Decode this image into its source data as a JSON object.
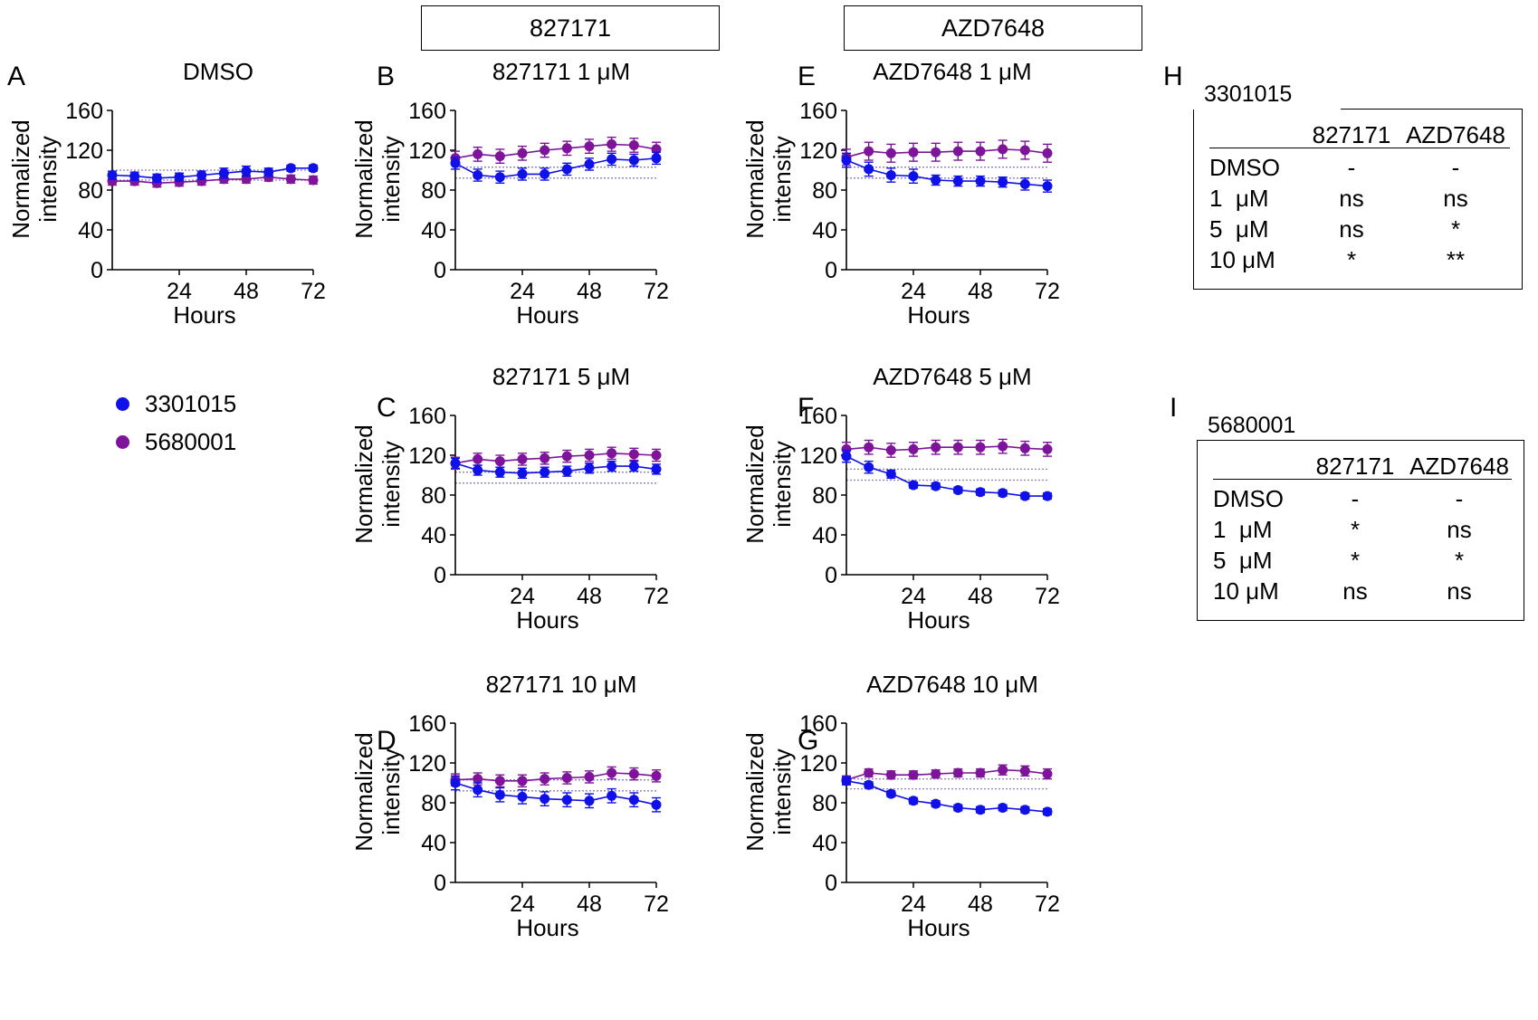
{
  "headers": {
    "compound_a": "827171",
    "compound_b": "AZD7648"
  },
  "legend": [
    {
      "label": "3301015",
      "color": "#1010e8"
    },
    {
      "label": "5680001",
      "color": "#7d1499"
    }
  ],
  "colors": {
    "series_a": "#1010e8",
    "series_b": "#7d1499",
    "axis": "#000000",
    "reference_line": "#8a7fc0"
  },
  "chart_data": [
    {
      "id": "A",
      "type": "line",
      "title": "DMSO",
      "xlabel": "Hours",
      "ylabel": [
        "Normalized",
        "intensity"
      ],
      "xlim": [
        0,
        72
      ],
      "ylim": [
        0,
        160
      ],
      "xticks": [
        24,
        48,
        72
      ],
      "yticks": [
        0,
        40,
        80,
        120,
        160
      ],
      "reference_lines": [
        100,
        90
      ],
      "x": [
        0,
        8,
        16,
        24,
        32,
        40,
        48,
        56,
        64,
        72
      ],
      "series": [
        {
          "name": "3301015",
          "values": [
            95,
            94,
            92,
            93,
            95,
            97,
            99,
            98,
            102,
            102
          ],
          "error": [
            4,
            4,
            4,
            4,
            4,
            5,
            5,
            4,
            3,
            3
          ]
        },
        {
          "name": "5680001",
          "values": [
            89,
            89,
            87,
            88,
            89,
            91,
            91,
            93,
            91,
            90
          ],
          "error": [
            4,
            4,
            4,
            4,
            4,
            4,
            4,
            4,
            4,
            4
          ]
        }
      ]
    },
    {
      "id": "B",
      "type": "line",
      "title": "827171 1 μM",
      "xlabel": "Hours",
      "ylabel": [
        "Normalized",
        "intensity"
      ],
      "xlim": [
        0,
        72
      ],
      "ylim": [
        0,
        160
      ],
      "xticks": [
        24,
        48,
        72
      ],
      "yticks": [
        0,
        40,
        80,
        120,
        160
      ],
      "reference_lines": [
        103,
        92
      ],
      "x": [
        0,
        8,
        16,
        24,
        32,
        40,
        48,
        56,
        64,
        72
      ],
      "series": [
        {
          "name": "3301015",
          "values": [
            107,
            95,
            93,
            96,
            96,
            101,
            106,
            111,
            110,
            112
          ],
          "error": [
            6,
            6,
            6,
            6,
            6,
            6,
            6,
            6,
            6,
            6
          ]
        },
        {
          "name": "5680001",
          "values": [
            112,
            116,
            114,
            117,
            120,
            122,
            124,
            126,
            125,
            121
          ],
          "error": [
            7,
            7,
            7,
            7,
            7,
            7,
            7,
            7,
            7,
            7
          ]
        }
      ]
    },
    {
      "id": "C",
      "type": "line",
      "title": "827171 5 μM",
      "xlabel": "Hours",
      "ylabel": [
        "Normalized",
        "intensity"
      ],
      "xlim": [
        0,
        72
      ],
      "ylim": [
        0,
        160
      ],
      "xticks": [
        24,
        48,
        72
      ],
      "yticks": [
        0,
        40,
        80,
        120,
        160
      ],
      "reference_lines": [
        103,
        92
      ],
      "x": [
        0,
        8,
        16,
        24,
        32,
        40,
        48,
        56,
        64,
        72
      ],
      "series": [
        {
          "name": "3301015",
          "values": [
            112,
            105,
            103,
            102,
            103,
            104,
            107,
            109,
            109,
            106
          ],
          "error": [
            5,
            5,
            5,
            5,
            5,
            5,
            5,
            5,
            5,
            5
          ]
        },
        {
          "name": "5680001",
          "values": [
            112,
            116,
            114,
            116,
            117,
            119,
            120,
            122,
            121,
            120
          ],
          "error": [
            6,
            6,
            6,
            6,
            6,
            6,
            6,
            6,
            6,
            6
          ]
        }
      ]
    },
    {
      "id": "D",
      "type": "line",
      "title": "827171 10 μM",
      "xlabel": "Hours",
      "ylabel": [
        "Normalized",
        "intensity"
      ],
      "xlim": [
        0,
        72
      ],
      "ylim": [
        0,
        160
      ],
      "xticks": [
        24,
        48,
        72
      ],
      "yticks": [
        0,
        40,
        80,
        120,
        160
      ],
      "reference_lines": [
        103,
        92
      ],
      "x": [
        0,
        8,
        16,
        24,
        32,
        40,
        48,
        56,
        64,
        72
      ],
      "series": [
        {
          "name": "3301015",
          "values": [
            100,
            93,
            88,
            86,
            84,
            83,
            82,
            87,
            83,
            78
          ],
          "error": [
            7,
            7,
            7,
            7,
            7,
            7,
            7,
            7,
            7,
            7
          ]
        },
        {
          "name": "5680001",
          "values": [
            103,
            104,
            102,
            102,
            104,
            105,
            106,
            110,
            109,
            107
          ],
          "error": [
            6,
            6,
            6,
            6,
            6,
            6,
            6,
            6,
            6,
            6
          ]
        }
      ]
    },
    {
      "id": "E",
      "type": "line",
      "title": "AZD7648 1 μM",
      "xlabel": "Hours",
      "ylabel": [
        "Normalized",
        "intensity"
      ],
      "xlim": [
        0,
        72
      ],
      "ylim": [
        0,
        160
      ],
      "xticks": [
        24,
        48,
        72
      ],
      "yticks": [
        0,
        40,
        80,
        120,
        160
      ],
      "reference_lines": [
        103,
        92
      ],
      "x": [
        0,
        8,
        16,
        24,
        32,
        40,
        48,
        56,
        64,
        72
      ],
      "series": [
        {
          "name": "3301015",
          "values": [
            110,
            101,
            95,
            94,
            90,
            89,
            89,
            88,
            86,
            84
          ],
          "error": [
            7,
            7,
            7,
            7,
            5,
            5,
            5,
            5,
            6,
            6
          ]
        },
        {
          "name": "5680001",
          "values": [
            113,
            119,
            117,
            118,
            118,
            119,
            119,
            121,
            120,
            117
          ],
          "error": [
            8,
            9,
            9,
            9,
            9,
            9,
            9,
            9,
            9,
            9
          ]
        }
      ]
    },
    {
      "id": "F",
      "type": "line",
      "title": "AZD7648 5 μM",
      "xlabel": "Hours",
      "ylabel": [
        "Normalized",
        "intensity"
      ],
      "xlim": [
        0,
        72
      ],
      "ylim": [
        0,
        160
      ],
      "xticks": [
        24,
        48,
        72
      ],
      "yticks": [
        0,
        40,
        80,
        120,
        160
      ],
      "reference_lines": [
        106,
        95
      ],
      "x": [
        0,
        8,
        16,
        24,
        32,
        40,
        48,
        56,
        64,
        72
      ],
      "series": [
        {
          "name": "3301015",
          "values": [
            119,
            108,
            101,
            90,
            89,
            85,
            83,
            82,
            79,
            79
          ],
          "error": [
            6,
            6,
            4,
            3,
            3,
            3,
            3,
            3,
            3,
            3
          ]
        },
        {
          "name": "5680001",
          "values": [
            126,
            128,
            125,
            126,
            128,
            128,
            128,
            129,
            127,
            126
          ],
          "error": [
            7,
            7,
            7,
            7,
            7,
            7,
            7,
            7,
            7,
            7
          ]
        }
      ]
    },
    {
      "id": "G",
      "type": "line",
      "title": "AZD7648 10 μM",
      "xlabel": "Hours",
      "ylabel": [
        "Normalized",
        "intensity"
      ],
      "xlim": [
        0,
        72
      ],
      "ylim": [
        0,
        160
      ],
      "xticks": [
        24,
        48,
        72
      ],
      "yticks": [
        0,
        40,
        80,
        120,
        160
      ],
      "reference_lines": [
        104,
        94
      ],
      "x": [
        0,
        8,
        16,
        24,
        32,
        40,
        48,
        56,
        64,
        72
      ],
      "series": [
        {
          "name": "3301015",
          "values": [
            102,
            98,
            89,
            82,
            79,
            75,
            73,
            75,
            73,
            71
          ],
          "error": [
            4,
            3,
            3,
            3,
            3,
            3,
            3,
            3,
            3,
            3
          ]
        },
        {
          "name": "5680001",
          "values": [
            103,
            110,
            108,
            108,
            109,
            110,
            110,
            113,
            112,
            109
          ],
          "error": [
            4,
            4,
            4,
            4,
            4,
            4,
            4,
            5,
            5,
            5
          ]
        }
      ]
    }
  ],
  "significance_tables": [
    {
      "id": "H",
      "title": "3301015",
      "columns": [
        "827171",
        "AZD7648"
      ],
      "rows": [
        {
          "label": "DMSO",
          "values": [
            "-",
            "-"
          ]
        },
        {
          "label": "1  μM",
          "values": [
            "ns",
            "ns"
          ]
        },
        {
          "label": "5  μM",
          "values": [
            "ns",
            "*"
          ]
        },
        {
          "label": "10 μM",
          "values": [
            "*",
            "**"
          ]
        }
      ]
    },
    {
      "id": "I",
      "title": "5680001",
      "columns": [
        "827171",
        "AZD7648"
      ],
      "rows": [
        {
          "label": "DMSO",
          "values": [
            "-",
            "-"
          ]
        },
        {
          "label": "1  μM",
          "values": [
            "*",
            "ns"
          ]
        },
        {
          "label": "5  μM",
          "values": [
            "*",
            "*"
          ]
        },
        {
          "label": "10 μM",
          "values": [
            "ns",
            "ns"
          ]
        }
      ]
    }
  ]
}
